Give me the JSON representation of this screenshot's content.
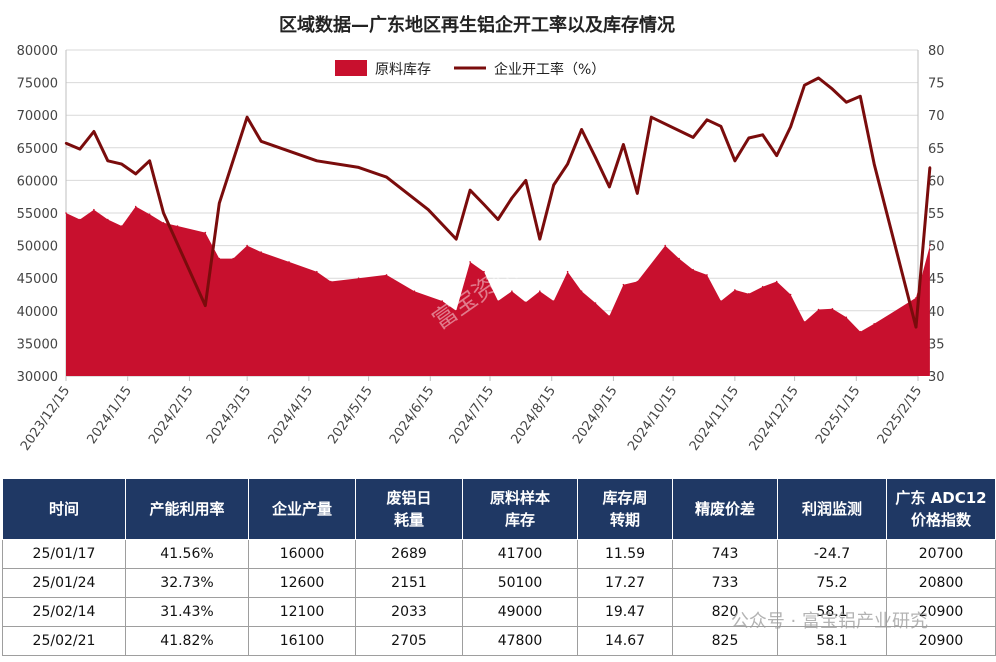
{
  "chart_data": {
    "type": "area+line",
    "title": "区域数据—广东地区再生铝企开工率以及库存情况",
    "legend": [
      "原料库存",
      "企业开工率（%）"
    ],
    "legend_position": "top",
    "x_ticks": [
      "2023/12/15",
      "2024/1/15",
      "2024/2/15",
      "2024/3/15",
      "2024/4/15",
      "2024/5/15",
      "2024/6/15",
      "2024/7/15",
      "2024/8/15",
      "2024/9/15",
      "2024/10/15",
      "2024/11/15",
      "2024/12/15",
      "2025/1/15",
      "2025/2/15"
    ],
    "left_ylim": [
      30000,
      80000
    ],
    "left_ticks": [
      30000,
      35000,
      40000,
      45000,
      50000,
      55000,
      60000,
      65000,
      70000,
      75000,
      80000
    ],
    "right_ylim": [
      30,
      80
    ],
    "right_ticks": [
      30,
      35,
      40,
      45,
      50,
      55,
      60,
      65,
      70,
      75,
      80
    ],
    "colors": {
      "inventory": "#c8102e",
      "rate": "#7a0c0c"
    },
    "series": [
      {
        "name": "原料库存",
        "axis": "left",
        "style": "area",
        "x": [
          "2023/12/15",
          "2023/12/22",
          "2023/12/29",
          "2024/1/5",
          "2024/1/12",
          "2024/1/19",
          "2024/1/26",
          "2024/2/2",
          "2024/2/9",
          "2024/2/23",
          "2024/3/1",
          "2024/3/8",
          "2024/3/15",
          "2024/3/22",
          "2024/4/5",
          "2024/4/19",
          "2024/4/26",
          "2024/5/10",
          "2024/5/24",
          "2024/6/7",
          "2024/6/21",
          "2024/6/28",
          "2024/7/5",
          "2024/7/12",
          "2024/7/19",
          "2024/7/26",
          "2024/8/2",
          "2024/8/9",
          "2024/8/16",
          "2024/8/23",
          "2024/8/30",
          "2024/9/6",
          "2024/9/13",
          "2024/9/20",
          "2024/9/27",
          "2024/10/11",
          "2024/10/18",
          "2024/10/25",
          "2024/11/1",
          "2024/11/8",
          "2024/11/15",
          "2024/11/22",
          "2024/11/29",
          "2024/12/6",
          "2024/12/13",
          "2024/12/20",
          "2024/12/27",
          "2025/1/3",
          "2025/1/10",
          "2025/1/17",
          "2025/1/24",
          "2025/2/14",
          "2025/2/21"
        ],
        "values": [
          55000,
          54000,
          55500,
          54000,
          53000,
          56000,
          54800,
          53500,
          53000,
          52000,
          48000,
          48000,
          50000,
          49000,
          47500,
          46000,
          44500,
          45000,
          45500,
          43000,
          41500,
          40000,
          47500,
          46000,
          41500,
          43000,
          41300,
          43000,
          41500,
          46000,
          43000,
          41200,
          39200,
          44000,
          44500,
          50000,
          48000,
          46300,
          45500,
          41500,
          43200,
          42600,
          43700,
          44500,
          42500,
          38300,
          40200,
          40300,
          39000,
          36800,
          38000,
          42000,
          50000
        ]
      },
      {
        "name": "企业开工率（%）",
        "axis": "right",
        "style": "line",
        "x": [
          "2023/12/15",
          "2023/12/22",
          "2023/12/29",
          "2024/1/5",
          "2024/1/12",
          "2024/1/19",
          "2024/1/26",
          "2024/2/2",
          "2024/2/23",
          "2024/3/1",
          "2024/3/15",
          "2024/3/22",
          "2024/4/19",
          "2024/5/10",
          "2024/5/24",
          "2024/6/14",
          "2024/6/28",
          "2024/7/5",
          "2024/7/12",
          "2024/7/19",
          "2024/7/26",
          "2024/8/2",
          "2024/8/9",
          "2024/8/16",
          "2024/8/23",
          "2024/8/30",
          "2024/9/6",
          "2024/9/13",
          "2024/9/20",
          "2024/9/27",
          "2024/10/4",
          "2024/10/25",
          "2024/11/1",
          "2024/11/8",
          "2024/11/15",
          "2024/11/22",
          "2024/11/29",
          "2024/12/6",
          "2024/12/13",
          "2024/12/20",
          "2024/12/27",
          "2025/1/3",
          "2025/1/10",
          "2025/1/17",
          "2025/1/24",
          "2025/2/14",
          "2025/2/21"
        ],
        "values": [
          65.7,
          64.8,
          67.5,
          63.0,
          62.5,
          61.0,
          63.0,
          55.0,
          40.8,
          56.5,
          69.7,
          66.0,
          63.0,
          62.0,
          60.5,
          55.5,
          51.0,
          58.5,
          56.3,
          54.0,
          57.3,
          60.0,
          51.0,
          59.3,
          62.5,
          67.8,
          63.5,
          59.0,
          65.5,
          58.0,
          69.7,
          66.6,
          69.3,
          68.3,
          63.0,
          66.5,
          67.0,
          63.8,
          68.2,
          74.6,
          75.7,
          74.0,
          72.0,
          72.9,
          62.5,
          37.5,
          62.0
        ]
      }
    ]
  },
  "watermark_center": "富宝资讯",
  "watermark_corner": "公众号 · 富宝铝产业研究",
  "table": {
    "headers": [
      {
        "l1": "时间",
        "l2": ""
      },
      {
        "l1": "产能利用率",
        "l2": ""
      },
      {
        "l1": "企业产量",
        "l2": ""
      },
      {
        "l1": "废铝日",
        "l2": "耗量"
      },
      {
        "l1": "原料样本",
        "l2": "库存"
      },
      {
        "l1": "库存周",
        "l2": "转期"
      },
      {
        "l1": "精废价差",
        "l2": ""
      },
      {
        "l1": "利润监测",
        "l2": ""
      },
      {
        "l1": "广东 ADC12",
        "l2": "价格指数"
      }
    ],
    "rows": [
      [
        "25/01/17",
        "41.56%",
        "16000",
        "2689",
        "41700",
        "11.59",
        "743",
        "-24.7",
        "20700"
      ],
      [
        "25/01/24",
        "32.73%",
        "12600",
        "2151",
        "50100",
        "17.27",
        "733",
        "75.2",
        "20800"
      ],
      [
        "25/02/14",
        "31.43%",
        "12100",
        "2033",
        "49000",
        "19.47",
        "820",
        "58.1",
        "20900"
      ],
      [
        "25/02/21",
        "41.82%",
        "16100",
        "2705",
        "47800",
        "14.67",
        "825",
        "58.1",
        "20900"
      ]
    ]
  }
}
